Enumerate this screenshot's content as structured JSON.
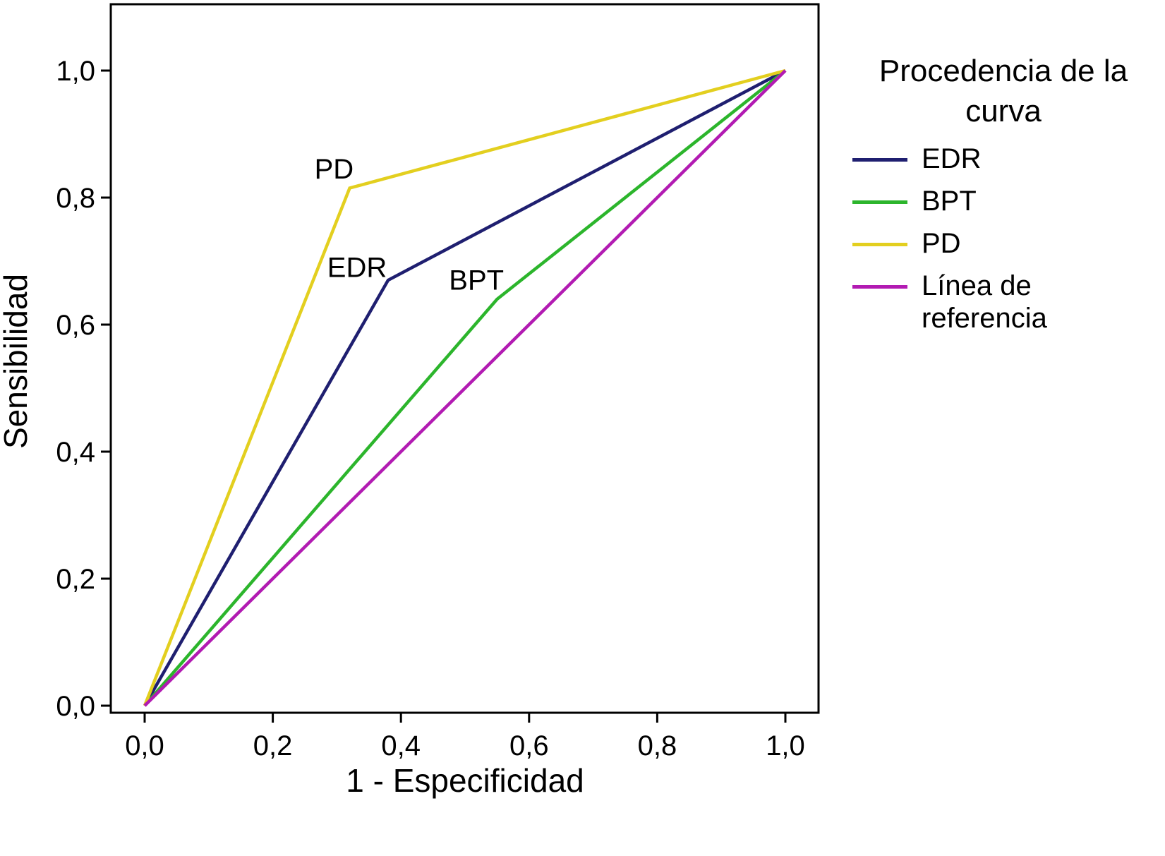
{
  "chart_data": {
    "type": "line",
    "chart_kind": "ROC curves",
    "title": "",
    "xlabel": "1 - Especificidad",
    "ylabel": "Sensibilidad",
    "xlim": [
      0,
      1
    ],
    "ylim": [
      0,
      1
    ],
    "xticks": [
      "0,0",
      "0,2",
      "0,4",
      "0,6",
      "0,8",
      "1,0"
    ],
    "yticks": [
      "0,0",
      "0,2",
      "0,4",
      "0,6",
      "0,8",
      "1,0"
    ],
    "grid": false,
    "legend_title": "Procedencia de la curva",
    "legend_position": "right",
    "axis_color": "#000000",
    "series": [
      {
        "name": "EDR",
        "color": "#1f1f70",
        "points": [
          [
            0,
            0
          ],
          [
            0.38,
            0.67
          ],
          [
            1,
            1
          ]
        ],
        "label": {
          "text": "EDR",
          "x": 0.285,
          "y": 0.675
        }
      },
      {
        "name": "BPT",
        "color": "#2cb52c",
        "points": [
          [
            0,
            0
          ],
          [
            0.55,
            0.64
          ],
          [
            1,
            1
          ]
        ],
        "label": {
          "text": "BPT",
          "x": 0.475,
          "y": 0.655
        }
      },
      {
        "name": "PD",
        "color": "#e3cf1f",
        "points": [
          [
            0,
            0
          ],
          [
            0.32,
            0.815
          ],
          [
            1,
            1
          ]
        ],
        "label": {
          "text": "PD",
          "x": 0.265,
          "y": 0.83
        }
      },
      {
        "name": "Línea de referencia",
        "color": "#b21bb2",
        "points": [
          [
            0,
            0
          ],
          [
            1,
            1
          ]
        ],
        "label": null
      }
    ]
  }
}
